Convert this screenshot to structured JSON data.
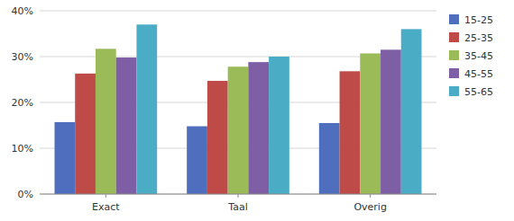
{
  "chart_data": {
    "type": "bar",
    "categories": [
      "Exact",
      "Taal",
      "Overig"
    ],
    "series": [
      {
        "name": "15-25",
        "color": "#4F6EBD",
        "values": [
          0.157,
          0.148,
          0.155
        ]
      },
      {
        "name": "25-35",
        "color": "#BE4B48",
        "values": [
          0.263,
          0.247,
          0.268
        ]
      },
      {
        "name": "35-45",
        "color": "#9BBB59",
        "values": [
          0.317,
          0.278,
          0.307
        ]
      },
      {
        "name": "45-55",
        "color": "#7E5FA6",
        "values": [
          0.298,
          0.288,
          0.315
        ]
      },
      {
        "name": "55-65",
        "color": "#4BACC6",
        "values": [
          0.37,
          0.3,
          0.36
        ]
      }
    ],
    "ylim": [
      0,
      0.4
    ],
    "yticks": [
      {
        "value": 0,
        "label": "0%"
      },
      {
        "value": 0.1,
        "label": "10%"
      },
      {
        "value": 0.2,
        "label": "20%"
      },
      {
        "value": 0.3,
        "label": "30%"
      },
      {
        "value": 0.4,
        "label": "40%"
      }
    ],
    "grid": true,
    "legend": "right"
  }
}
